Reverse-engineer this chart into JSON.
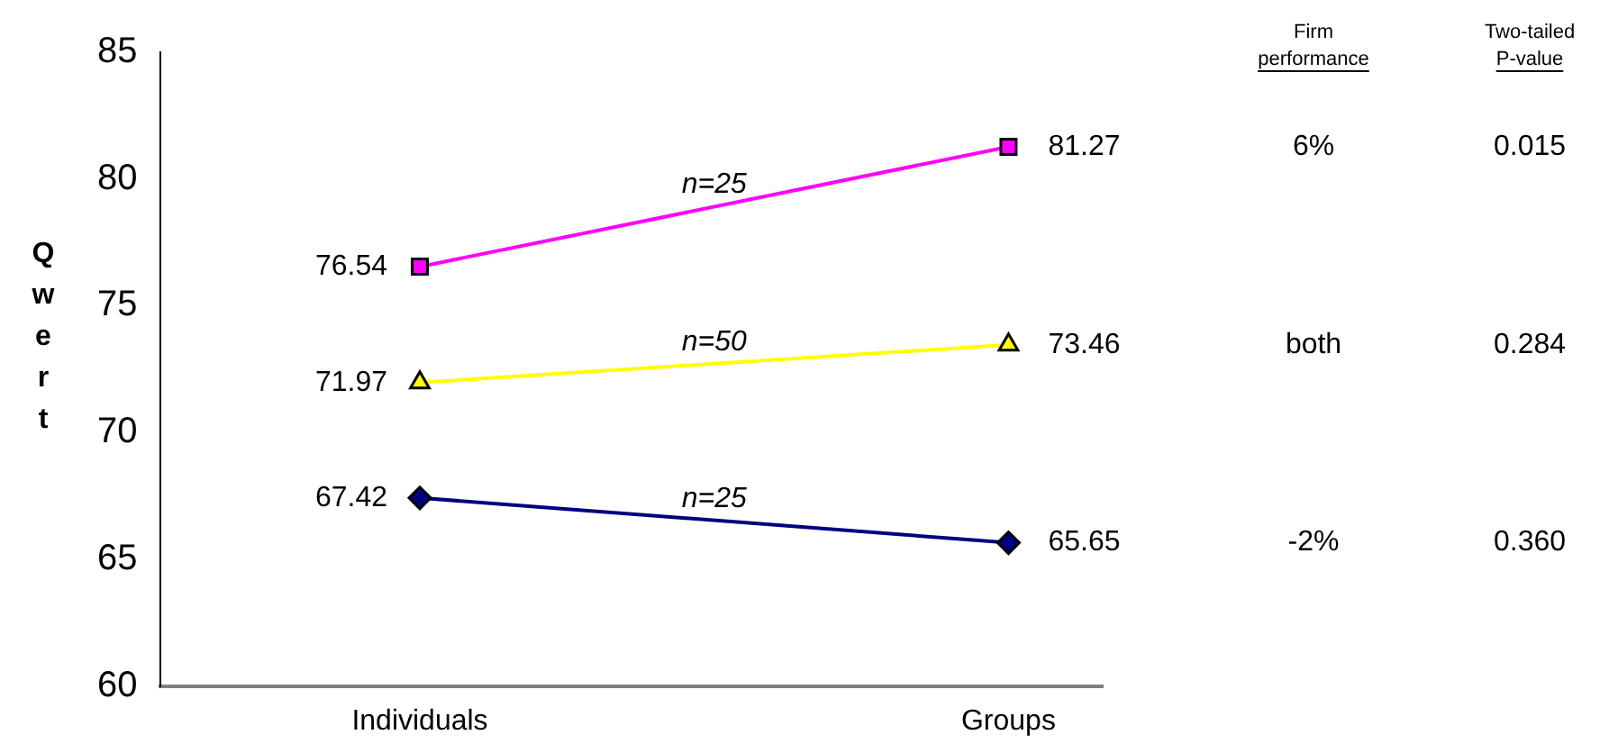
{
  "chart_data": {
    "type": "line",
    "ylabel": "Qwert",
    "categories": [
      "Individuals",
      "Groups"
    ],
    "series": [
      {
        "color": "#ff00ff",
        "values": [
          76.54,
          81.27
        ],
        "marker": "square"
      },
      {
        "color": "#ffff00",
        "values": [
          71.97,
          73.46
        ],
        "marker": "triangle"
      },
      {
        "color": "#000080",
        "values": [
          67.42,
          65.65
        ],
        "marker": "diamond"
      }
    ],
    "ylim": [
      60,
      85
    ],
    "yticks": [
      60,
      65,
      70,
      75,
      80,
      85
    ],
    "grid": false,
    "legend": false,
    "data_labels": true,
    "line_style": "solid",
    "annotations": [
      "Firm performance",
      "Two-tailed P-value",
      "6%",
      "0.015",
      "both",
      "0.284",
      "-2%",
      "0.360",
      "n=25",
      "n=50",
      "n=25"
    ]
  }
}
